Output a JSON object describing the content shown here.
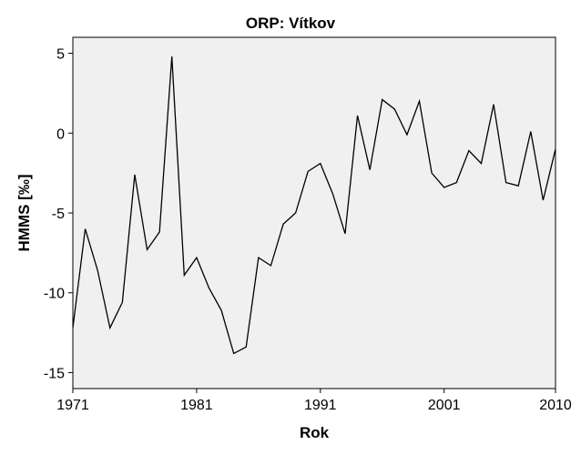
{
  "chart_data": {
    "type": "line",
    "title": "ORP: Vítkov",
    "xlabel": "Rok",
    "ylabel": "HMMS [‰]",
    "xlim": [
      1971,
      2010
    ],
    "ylim": [
      -16,
      6
    ],
    "xticks": [
      1971,
      1981,
      1991,
      2001,
      2010
    ],
    "yticks": [
      5,
      0,
      -5,
      -10,
      -15
    ],
    "grid": false,
    "plot_background": "#f0f0f0",
    "line_color": "#000000",
    "series": [
      {
        "x": [
          1971,
          1972,
          1973,
          1974,
          1975,
          1976,
          1977,
          1978,
          1979,
          1980,
          1981,
          1982,
          1983,
          1984,
          1985,
          1986,
          1987,
          1988,
          1989,
          1990,
          1991,
          1992,
          1993,
          1994,
          1995,
          1996,
          1997,
          1998,
          1999,
          2000,
          2001,
          2002,
          2003,
          2004,
          2005,
          2006,
          2007,
          2008,
          2009,
          2010
        ],
        "values": [
          -12.2,
          -6.0,
          -8.6,
          -12.2,
          -10.6,
          -2.6,
          -7.3,
          -6.2,
          4.8,
          -8.9,
          -7.8,
          -9.7,
          -11.1,
          -13.8,
          -13.4,
          -7.8,
          -8.3,
          -5.7,
          -5.0,
          -2.4,
          -1.9,
          -3.8,
          -6.3,
          1.1,
          -2.3,
          2.1,
          1.5,
          -0.1,
          2.0,
          -2.5,
          -3.4,
          -3.1,
          -1.1,
          -1.9,
          1.8,
          -3.1,
          -3.3,
          0.1,
          -4.2,
          -1.0
        ]
      }
    ]
  }
}
